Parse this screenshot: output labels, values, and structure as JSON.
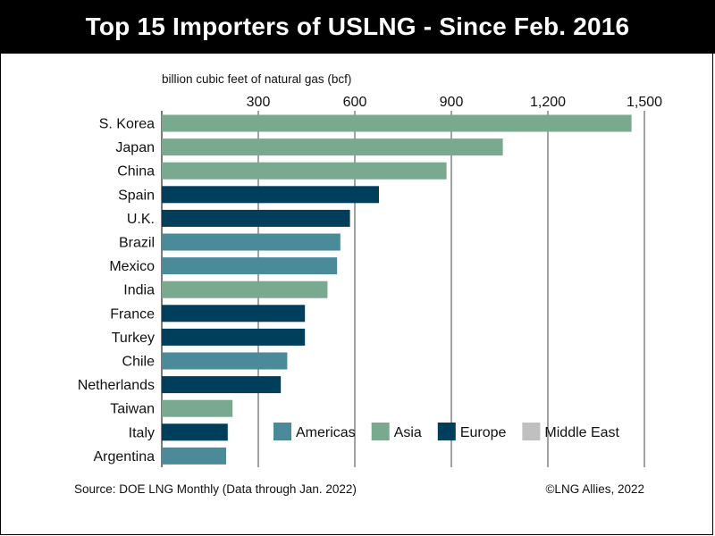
{
  "title": "Top 15 Importers of USLNG - Since Feb. 2016",
  "source": "Source: DOE LNG Monthly (Data through Jan. 2022)",
  "copyright": "©LNG Allies, 2022",
  "colors": {
    "Americas": "#4a8a99",
    "Asia": "#79a98f",
    "Europe": "#003f5c",
    "Middle East": "#c0c0c0"
  },
  "chart_data": {
    "type": "bar",
    "orientation": "horizontal",
    "title": "Top 15 Importers of USLNG - Since Feb. 2016",
    "xlabel": "billion cubic feet of natural gas (bcf)",
    "ylabel": "",
    "xlim": [
      0,
      1500
    ],
    "xticks": [
      300,
      600,
      900,
      1200,
      1500
    ],
    "xtick_labels": [
      "300",
      "600",
      "900",
      "1,200",
      "1,500"
    ],
    "grid": "vertical",
    "legend_position": "bottom-right",
    "legend": [
      "Americas",
      "Asia",
      "Europe",
      "Middle East"
    ],
    "categories": [
      "S. Korea",
      "Japan",
      "China",
      "Spain",
      "U.K.",
      "Brazil",
      "Mexico",
      "India",
      "France",
      "Turkey",
      "Chile",
      "Netherlands",
      "Taiwan",
      "Italy",
      "Argentina"
    ],
    "values": [
      1460,
      1060,
      885,
      675,
      585,
      555,
      545,
      515,
      445,
      445,
      390,
      370,
      220,
      205,
      200
    ],
    "regions": [
      "Asia",
      "Asia",
      "Asia",
      "Europe",
      "Europe",
      "Americas",
      "Americas",
      "Asia",
      "Europe",
      "Europe",
      "Americas",
      "Europe",
      "Asia",
      "Europe",
      "Americas"
    ]
  }
}
